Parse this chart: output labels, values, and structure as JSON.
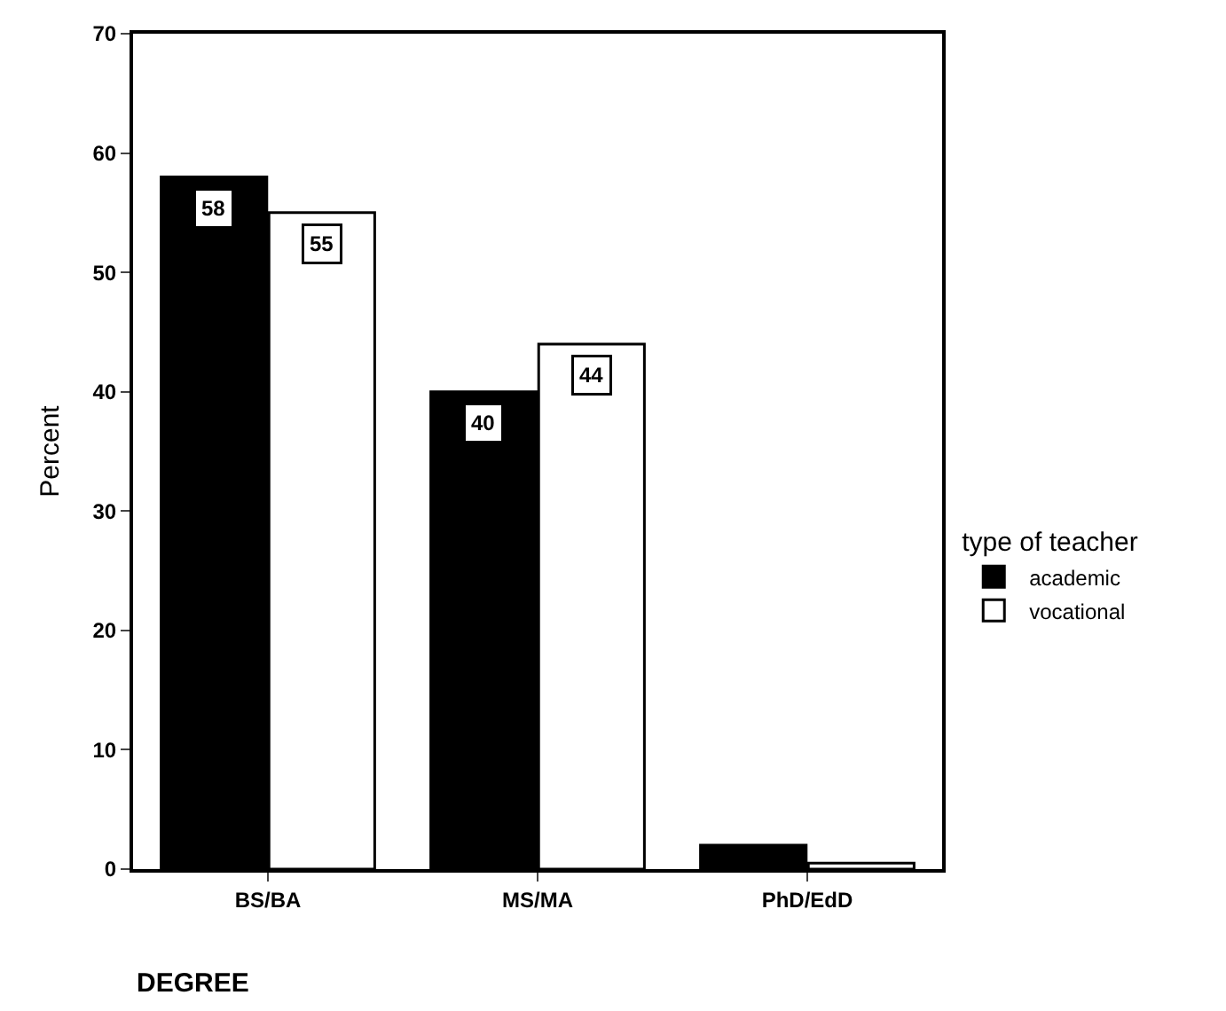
{
  "chart_data": {
    "type": "bar",
    "xlabel": "DEGREE",
    "ylabel": "Percent",
    "legend_title": "type of teacher",
    "categories": [
      "BS/BA",
      "MS/MA",
      "PhD/EdD"
    ],
    "series": [
      {
        "name": "academic",
        "color": "#000000",
        "values": [
          58,
          40,
          2
        ],
        "value_labels": [
          "58",
          "40",
          null
        ]
      },
      {
        "name": "vocational",
        "color": "#ffffff",
        "values": [
          55,
          44,
          0.5
        ],
        "value_labels": [
          "55",
          "44",
          null
        ]
      }
    ],
    "ylim": [
      0,
      70
    ],
    "yticks": [
      0,
      10,
      20,
      30,
      40,
      50,
      60,
      70
    ],
    "legend": "right"
  }
}
